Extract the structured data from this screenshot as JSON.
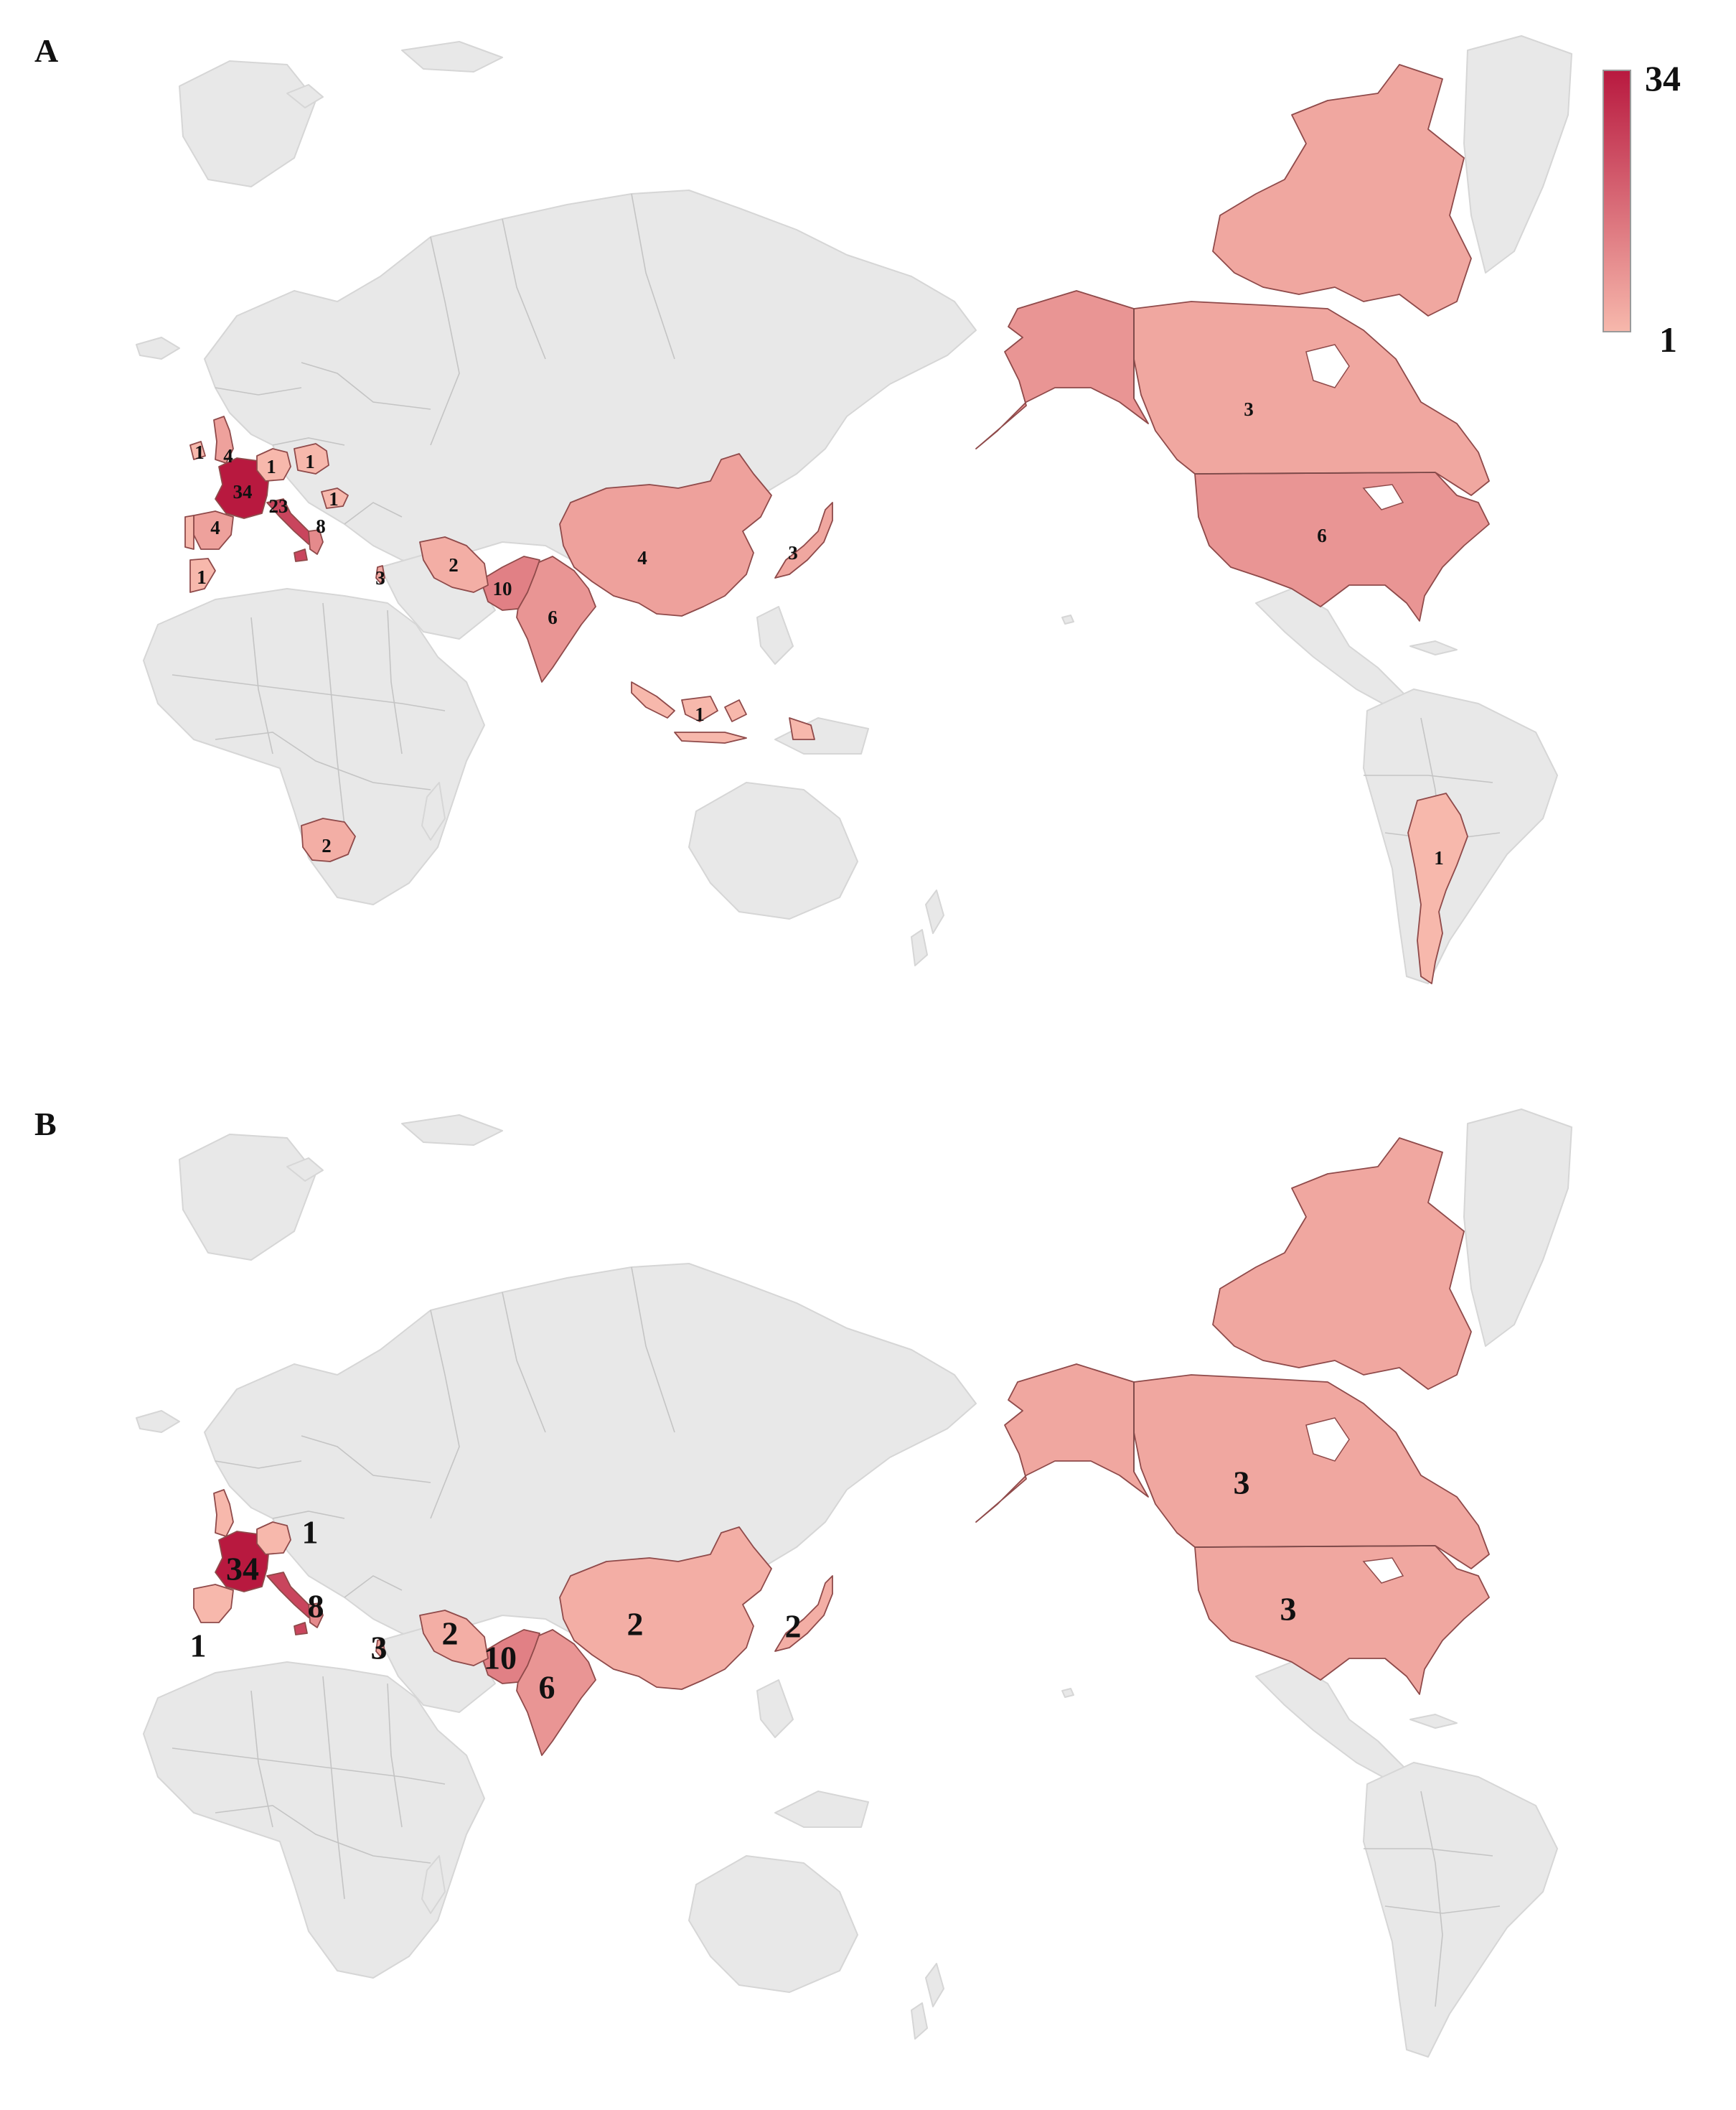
{
  "colors": {
    "land": "#e8e8e8",
    "land_border": "#cfcfcf",
    "scale_low": "#f7b8ac",
    "scale_high": "#b8193f",
    "country_border": "#8f4a4a"
  },
  "legend": {
    "max_label": "34",
    "min_label": "1",
    "min": 1,
    "max": 34
  },
  "panels": [
    {
      "label": "A",
      "countries": [
        {
          "id": "usa",
          "label": "6",
          "value": 6
        },
        {
          "id": "canada",
          "label": "3",
          "value": 3
        },
        {
          "id": "alaska",
          "label": "",
          "value": 6
        },
        {
          "id": "arctic",
          "label": "",
          "value": 3
        },
        {
          "id": "argentina",
          "label": "1",
          "value": 1
        },
        {
          "id": "china",
          "label": "4",
          "value": 4
        },
        {
          "id": "japan",
          "label": "3",
          "value": 3
        },
        {
          "id": "india",
          "label": "6",
          "value": 6
        },
        {
          "id": "pakistan",
          "label": "10",
          "value": 10
        },
        {
          "id": "iran",
          "label": "2",
          "value": 2
        },
        {
          "id": "israel",
          "label": "3",
          "value": 3
        },
        {
          "id": "indonesia",
          "label": "1",
          "value": 1
        },
        {
          "id": "south-africa",
          "label": "2",
          "value": 2
        },
        {
          "id": "france",
          "label": "34",
          "value": 34
        },
        {
          "id": "italy",
          "label": "23",
          "value": 23
        },
        {
          "id": "spain",
          "label": "4",
          "value": 4
        },
        {
          "id": "portugal",
          "label": "1",
          "value": 1
        },
        {
          "id": "morocco",
          "label": "1",
          "value": 1
        },
        {
          "id": "ireland",
          "label": "1",
          "value": 1
        },
        {
          "id": "uk",
          "label": "4",
          "value": 4
        },
        {
          "id": "germany",
          "label": "1",
          "value": 1
        },
        {
          "id": "poland",
          "label": "1",
          "value": 1
        },
        {
          "id": "romania",
          "label": "1",
          "value": 1
        },
        {
          "id": "greece",
          "label": "8",
          "value": 8
        }
      ]
    },
    {
      "label": "B",
      "countries": [
        {
          "id": "usa",
          "label": "3",
          "value": 3
        },
        {
          "id": "canada",
          "label": "3",
          "value": 3
        },
        {
          "id": "alaska",
          "label": "",
          "value": 3
        },
        {
          "id": "arctic",
          "label": "",
          "value": 3
        },
        {
          "id": "china",
          "label": "2",
          "value": 2
        },
        {
          "id": "japan",
          "label": "2",
          "value": 2
        },
        {
          "id": "india",
          "label": "6",
          "value": 6
        },
        {
          "id": "pakistan",
          "label": "10",
          "value": 10
        },
        {
          "id": "iran",
          "label": "2",
          "value": 2
        },
        {
          "id": "israel",
          "label": "3",
          "value": 3
        },
        {
          "id": "france",
          "label": "34",
          "value": 34
        },
        {
          "id": "italy",
          "label": "",
          "value": 23
        },
        {
          "id": "greece",
          "label": "8",
          "value": 8
        },
        {
          "id": "germany",
          "label": "1",
          "value": 1
        },
        {
          "id": "spain",
          "label": "1",
          "value": 1
        },
        {
          "id": "uk",
          "label": "",
          "value": 1
        }
      ]
    }
  ]
}
